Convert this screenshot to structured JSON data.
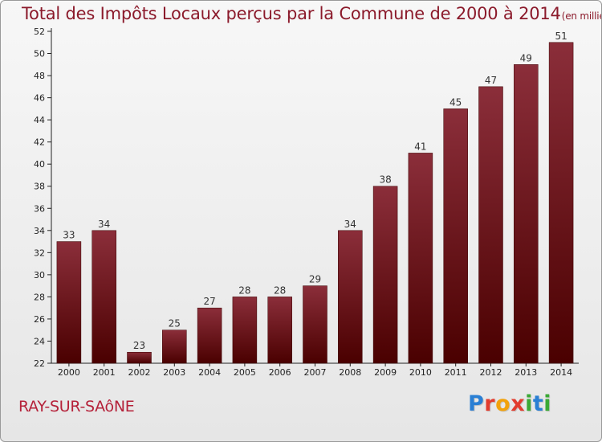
{
  "header": {
    "title": "Total des Impôts Locaux perçus par la Commune de 2000 à 2014",
    "unit": "(en milliers d'€)"
  },
  "footer": {
    "commune": "RAY-SUR-SAôNE",
    "brand_letters": [
      "P",
      "r",
      "o",
      "x",
      "i",
      "t",
      "i"
    ],
    "brand_colors": [
      "#2a7fd4",
      "#e23c2e",
      "#f2a20c",
      "#e23c2e",
      "#3aa935",
      "#2a7fd4",
      "#3aa935"
    ]
  },
  "chart_data": {
    "type": "bar",
    "title": "Total des Impôts Locaux perçus par la Commune de 2000 à 2014",
    "xlabel": "",
    "ylabel": "",
    "categories": [
      "2000",
      "2001",
      "2002",
      "2003",
      "2004",
      "2005",
      "2006",
      "2007",
      "2008",
      "2009",
      "2010",
      "2011",
      "2012",
      "2013",
      "2014"
    ],
    "values": [
      33,
      34,
      23,
      25,
      27,
      28,
      28,
      29,
      34,
      38,
      41,
      45,
      47,
      49,
      51
    ],
    "ylim": [
      22,
      52
    ],
    "yticks": [
      22,
      24,
      26,
      28,
      30,
      32,
      34,
      36,
      38,
      40,
      42,
      44,
      46,
      48,
      50,
      52
    ],
    "grid": false,
    "bar_color_top": "#8b2e3a",
    "bar_color_bottom": "#4a0000"
  }
}
